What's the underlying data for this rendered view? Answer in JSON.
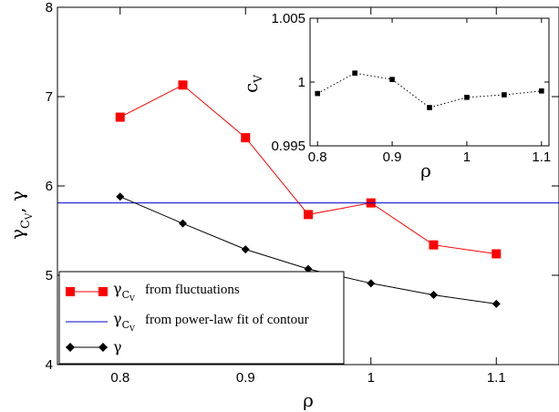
{
  "chart_data": [
    {
      "type": "line",
      "xlabel": "ρ",
      "ylabel_main": "γ",
      "ylabel_sub": "C",
      "ylabel_subsub": "V",
      "ylabel_tail": ", γ",
      "xlim": [
        0.75,
        1.15
      ],
      "ylim": [
        4,
        8
      ],
      "xticks": [
        0.8,
        0.9,
        1,
        1.1
      ],
      "xtick_labels": [
        "0.8",
        "0.9",
        "1",
        "1.1"
      ],
      "yticks": [
        4,
        5,
        6,
        7,
        8
      ],
      "ytick_labels": [
        "4",
        "5",
        "6",
        "7",
        "8"
      ],
      "grid": false,
      "legend_position": "bottom-left",
      "series": [
        {
          "name_sym": "γ",
          "name_sub": "C",
          "name_subsub": "V",
          "name_text": "from fluctuations",
          "color": "#ff0000",
          "marker": "square",
          "x": [
            0.8,
            0.85,
            0.9,
            0.95,
            1.0,
            1.05,
            1.1
          ],
          "y": [
            6.77,
            7.13,
            6.54,
            5.68,
            5.81,
            5.34,
            5.24
          ]
        },
        {
          "name_sym": "γ",
          "name_sub": "C",
          "name_subsub": "V",
          "name_text": "from power-law fit of contour",
          "color": "#0000cc",
          "marker": "none",
          "hline": 5.81
        },
        {
          "name_sym": "γ",
          "name_sub": "",
          "name_subsub": "",
          "name_text": "",
          "color": "#000000",
          "marker": "diamond",
          "x": [
            0.8,
            0.85,
            0.9,
            0.95,
            1.0,
            1.05,
            1.1
          ],
          "y": [
            5.88,
            5.58,
            5.29,
            5.07,
            4.91,
            4.78,
            4.68
          ]
        }
      ]
    },
    {
      "type": "line",
      "inset": true,
      "xlabel": "ρ",
      "ylabel_main": "c",
      "ylabel_sub": "V",
      "xlim": [
        0.79,
        1.11
      ],
      "ylim": [
        0.995,
        1.005
      ],
      "xticks": [
        0.8,
        0.9,
        1,
        1.1
      ],
      "xtick_labels": [
        "0.8",
        "0.9",
        "1",
        "1.1"
      ],
      "yticks": [
        0.995,
        1,
        1.005
      ],
      "ytick_labels": [
        "0.995",
        "1",
        "1.005"
      ],
      "grid": false,
      "series": [
        {
          "color": "#000000",
          "marker": "square",
          "line_style": "dotted",
          "x": [
            0.8,
            0.85,
            0.9,
            0.95,
            1.0,
            1.05,
            1.1
          ],
          "y": [
            0.9991,
            1.0007,
            1.0002,
            0.998,
            0.9988,
            0.999,
            0.9993
          ]
        }
      ]
    }
  ]
}
